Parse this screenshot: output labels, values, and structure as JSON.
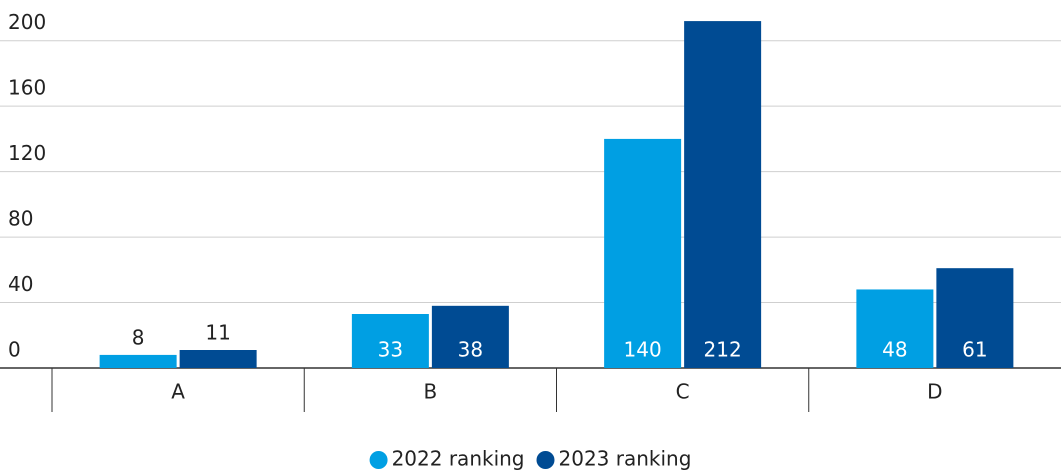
{
  "chart_data": {
    "type": "bar",
    "categories": [
      "A",
      "B",
      "C",
      "D"
    ],
    "series": [
      {
        "name": "2022 ranking",
        "color": "#009fe3",
        "values": [
          8,
          33,
          140,
          48
        ]
      },
      {
        "name": "2023 ranking",
        "color": "#004b93",
        "values": [
          11,
          38,
          212,
          61
        ]
      }
    ],
    "ylim": [
      0,
      220
    ],
    "yticks": [
      0,
      40,
      80,
      120,
      160,
      200
    ],
    "grid": true,
    "legend": "bottom"
  }
}
